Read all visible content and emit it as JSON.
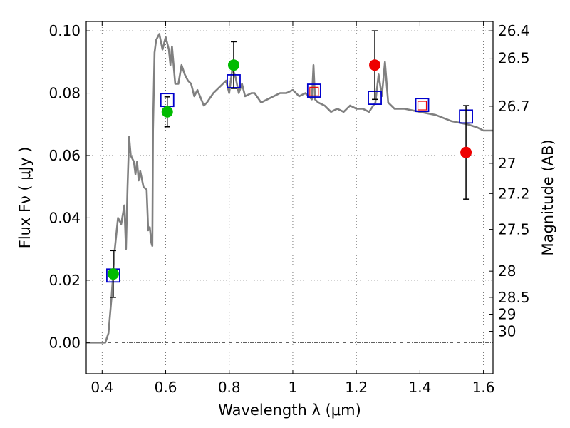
{
  "chart_data": {
    "type": "scatter",
    "xlabel": "Wavelength  λ (μm)",
    "ylabel": "Flux  Fν  ( μJy )",
    "y2label": "Magnitude (AB)",
    "xlim": [
      0.35,
      1.63
    ],
    "ylim": [
      -0.01,
      0.103
    ],
    "grid": true,
    "x_ticks": [
      {
        "value": 0.4,
        "label": "0.4"
      },
      {
        "value": 0.6,
        "label": "0.6"
      },
      {
        "value": 0.8,
        "label": "0.8"
      },
      {
        "value": 1.0,
        "label": "1"
      },
      {
        "value": 1.2,
        "label": "1.2"
      },
      {
        "value": 1.4,
        "label": "1.4"
      },
      {
        "value": 1.6,
        "label": "1.6"
      }
    ],
    "y_ticks": [
      {
        "value": 0.0,
        "label": "0.00"
      },
      {
        "value": 0.02,
        "label": "0.02"
      },
      {
        "value": 0.04,
        "label": "0.04"
      },
      {
        "value": 0.06,
        "label": "0.06"
      },
      {
        "value": 0.08,
        "label": "0.08"
      },
      {
        "value": 0.1,
        "label": "0.10"
      }
    ],
    "mag_ticks": [
      {
        "flux": 0.1,
        "label": "26.4"
      },
      {
        "flux": 0.0912,
        "label": "26.5"
      },
      {
        "flux": 0.0758,
        "label": "26.7"
      },
      {
        "flux": 0.0575,
        "label": "27"
      },
      {
        "flux": 0.0478,
        "label": "27.2"
      },
      {
        "flux": 0.0363,
        "label": "27.5"
      },
      {
        "flux": 0.0229,
        "label": "28"
      },
      {
        "flux": 0.0145,
        "label": "28.5"
      },
      {
        "flux": 0.0091,
        "label": "29"
      },
      {
        "flux": 0.0036,
        "label": "30"
      }
    ],
    "colors": {
      "model": "#808080",
      "detection": "#00bb00",
      "upper": "#ee0000",
      "model_box": "#0000cc"
    },
    "model_spectrum": {
      "name": "",
      "x": [
        0.35,
        0.41,
        0.42,
        0.43,
        0.44,
        0.45,
        0.46,
        0.47,
        0.475,
        0.48,
        0.485,
        0.49,
        0.5,
        0.505,
        0.51,
        0.515,
        0.52,
        0.53,
        0.54,
        0.545,
        0.55,
        0.555,
        0.558,
        0.56,
        0.565,
        0.57,
        0.58,
        0.59,
        0.6,
        0.61,
        0.615,
        0.62,
        0.63,
        0.64,
        0.65,
        0.66,
        0.67,
        0.68,
        0.69,
        0.7,
        0.72,
        0.73,
        0.75,
        0.77,
        0.79,
        0.8,
        0.81,
        0.82,
        0.83,
        0.84,
        0.85,
        0.87,
        0.88,
        0.9,
        0.92,
        0.94,
        0.96,
        0.98,
        1.0,
        1.02,
        1.04,
        1.06,
        1.065,
        1.07,
        1.08,
        1.1,
        1.12,
        1.14,
        1.16,
        1.18,
        1.2,
        1.22,
        1.24,
        1.26,
        1.27,
        1.28,
        1.29,
        1.3,
        1.32,
        1.35,
        1.4,
        1.45,
        1.5,
        1.55,
        1.58,
        1.6,
        1.63
      ],
      "y": [
        0.0,
        0.0,
        0.003,
        0.015,
        0.03,
        0.04,
        0.038,
        0.044,
        0.03,
        0.05,
        0.066,
        0.06,
        0.058,
        0.054,
        0.058,
        0.052,
        0.055,
        0.05,
        0.049,
        0.036,
        0.037,
        0.032,
        0.031,
        0.068,
        0.093,
        0.097,
        0.099,
        0.094,
        0.098,
        0.094,
        0.089,
        0.095,
        0.083,
        0.083,
        0.089,
        0.086,
        0.084,
        0.083,
        0.079,
        0.081,
        0.076,
        0.077,
        0.08,
        0.082,
        0.084,
        0.08,
        0.088,
        0.085,
        0.08,
        0.083,
        0.079,
        0.08,
        0.08,
        0.077,
        0.078,
        0.079,
        0.08,
        0.08,
        0.081,
        0.079,
        0.08,
        0.078,
        0.089,
        0.078,
        0.077,
        0.076,
        0.074,
        0.075,
        0.074,
        0.076,
        0.075,
        0.075,
        0.074,
        0.077,
        0.086,
        0.079,
        0.09,
        0.077,
        0.075,
        0.075,
        0.074,
        0.073,
        0.071,
        0.07,
        0.069,
        0.068,
        0.068
      ]
    },
    "observations": [
      {
        "x": 0.435,
        "y": 0.022,
        "err": 0.0075,
        "kind": "detection"
      },
      {
        "x": 0.605,
        "y": 0.074,
        "err": 0.0048,
        "kind": "detection"
      },
      {
        "x": 0.814,
        "y": 0.089,
        "err": 0.0075,
        "kind": "detection"
      },
      {
        "x": 1.258,
        "y": 0.089,
        "err": 0.011,
        "kind": "upper"
      },
      {
        "x": 1.545,
        "y": 0.061,
        "err": 0.015,
        "kind": "upper"
      }
    ],
    "model_points": [
      {
        "x": 0.435,
        "y": 0.0215
      },
      {
        "x": 0.605,
        "y": 0.0778
      },
      {
        "x": 0.814,
        "y": 0.0838
      },
      {
        "x": 1.067,
        "y": 0.0808
      },
      {
        "x": 1.258,
        "y": 0.0785
      },
      {
        "x": 1.407,
        "y": 0.0762
      },
      {
        "x": 1.545,
        "y": 0.0725
      }
    ],
    "small_red_marks": [
      {
        "x": 1.067,
        "y": 0.0805
      },
      {
        "x": 1.407,
        "y": 0.076
      }
    ]
  }
}
